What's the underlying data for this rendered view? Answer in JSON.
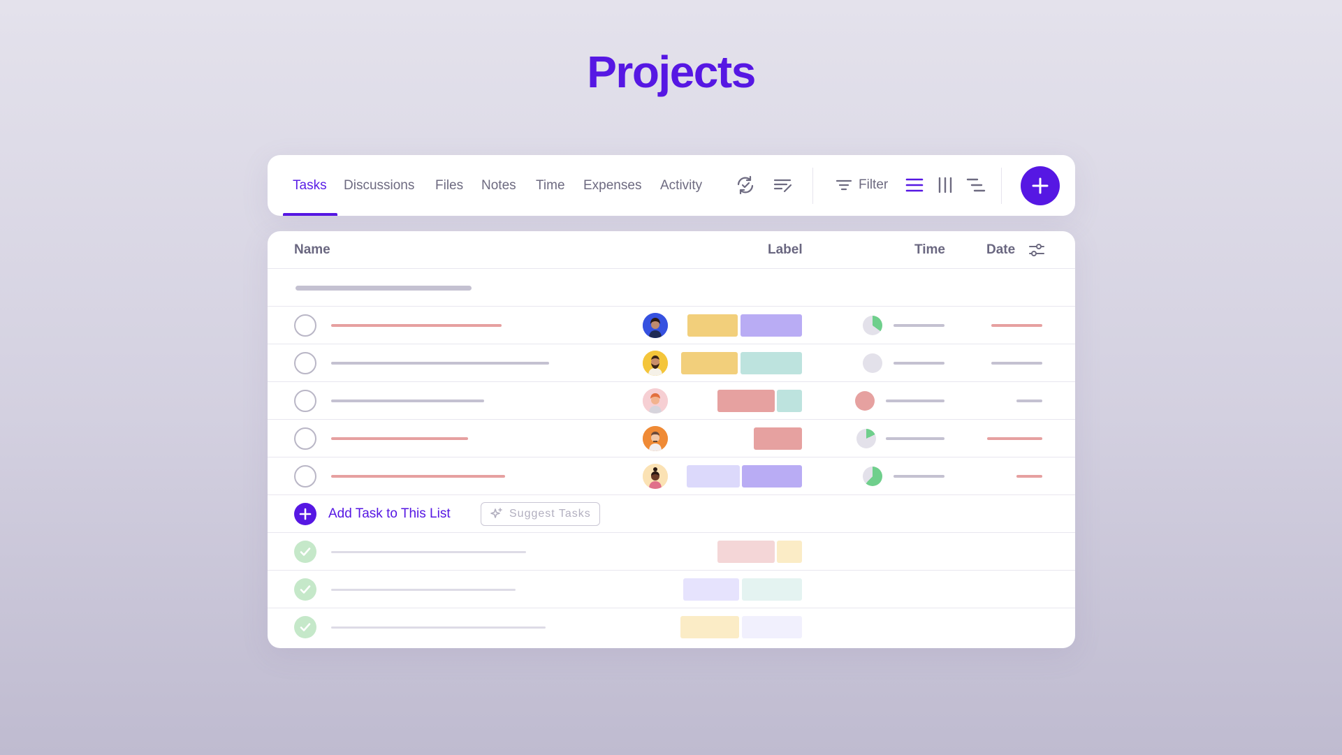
{
  "page": {
    "title": "Projects"
  },
  "toolbar": {
    "tabs": [
      {
        "label": "Tasks",
        "active": true
      },
      {
        "label": "Discussions"
      },
      {
        "label": "Files"
      },
      {
        "label": "Notes"
      },
      {
        "label": "Time"
      },
      {
        "label": "Expenses"
      },
      {
        "label": "Activity"
      }
    ],
    "icons": [
      "sync-icon",
      "edit-list-icon",
      "filter-icon",
      "list-view-icon",
      "board-view-icon",
      "gantt-view-icon",
      "plus-icon"
    ],
    "filter_label": "Filter"
  },
  "table": {
    "headers": {
      "name": "Name",
      "label": "Label",
      "time": "Time",
      "date": "Date"
    },
    "add_task_label": "Add Task to This List",
    "suggest_label": "Suggest Tasks"
  },
  "colors": {
    "accent": "#5617e3",
    "overdue": "#e6a0a0",
    "neutral": "#c4c1d1",
    "yellow": "#f2cf7b",
    "purple": "#b9acf4",
    "mint": "#bde3de",
    "red": "#e6a1a0",
    "lavender": "#dcd9fb",
    "done_green": "#c5e8c9",
    "pie_green": "#6fcf8c",
    "pie_grey": "#e3e1ea"
  }
}
